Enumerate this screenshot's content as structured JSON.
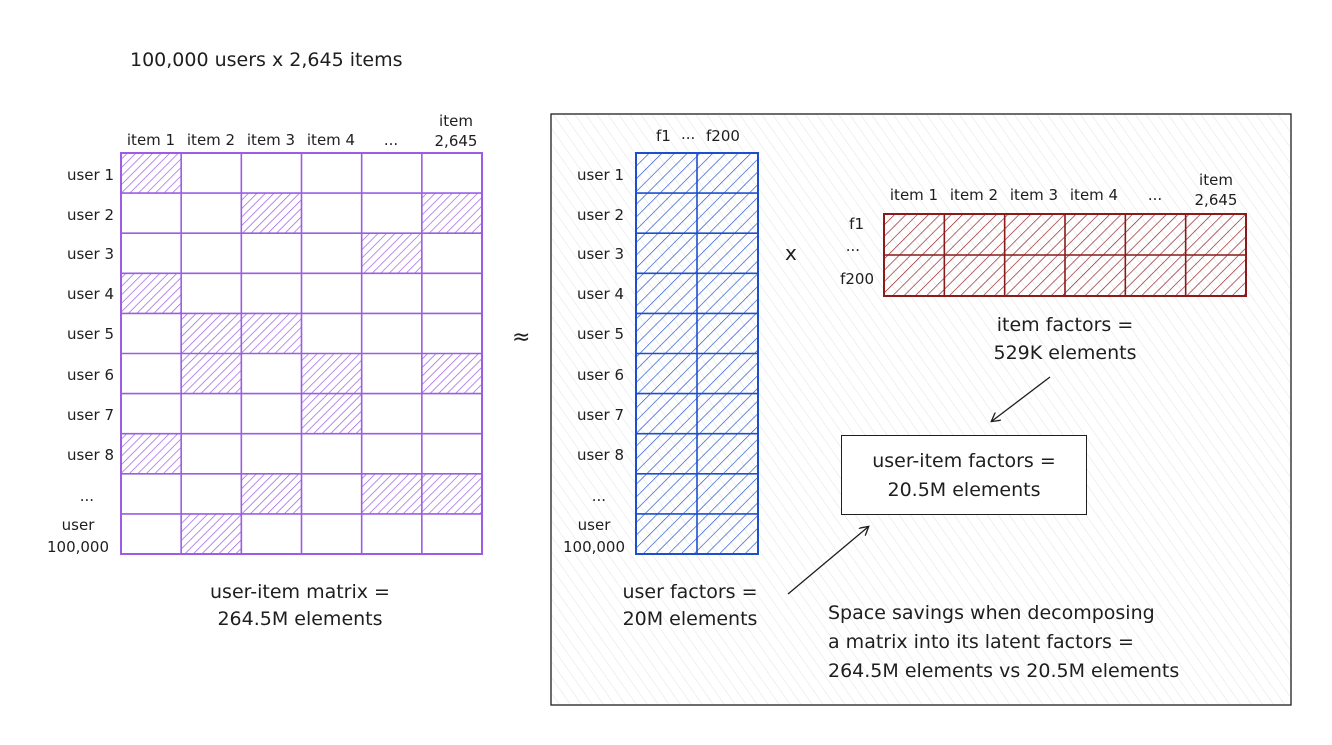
{
  "title": "100,000 users x 2,645 items",
  "approx_symbol": "≈",
  "times_symbol": "x",
  "user_item_matrix": {
    "column_labels": [
      "item 1",
      "item 2",
      "item 3",
      "item 4",
      "...",
      "item 2,645"
    ],
    "row_labels": [
      "user 1",
      "user 2",
      "user 3",
      "user 4",
      "user 5",
      "user 6",
      "user 7",
      "user 8",
      "...",
      "user 100,000"
    ],
    "filled_cells": [
      [
        0,
        0
      ],
      [
        1,
        2
      ],
      [
        1,
        5
      ],
      [
        2,
        4
      ],
      [
        3,
        0
      ],
      [
        4,
        1
      ],
      [
        4,
        2
      ],
      [
        5,
        1
      ],
      [
        5,
        3
      ],
      [
        5,
        5
      ],
      [
        6,
        3
      ],
      [
        7,
        0
      ],
      [
        8,
        2
      ],
      [
        8,
        4
      ],
      [
        8,
        5
      ],
      [
        9,
        1
      ]
    ],
    "caption": [
      "user-item matrix =",
      "264.5M elements"
    ],
    "color": "#9b5de5"
  },
  "user_factors": {
    "column_labels": [
      "f1",
      "...",
      "f200"
    ],
    "row_labels": [
      "user 1",
      "user 2",
      "user 3",
      "user 4",
      "user 5",
      "user 6",
      "user 7",
      "user 8",
      "...",
      "user 100,000"
    ],
    "caption": [
      "user factors =",
      "20M elements"
    ],
    "color": "#1c4fd0"
  },
  "item_factors": {
    "column_labels": [
      "item 1",
      "item 2",
      "item 3",
      "item 4",
      "...",
      "item 2,645"
    ],
    "row_labels": [
      "f1",
      "...",
      "f200"
    ],
    "caption": [
      "item factors =",
      "529K elements"
    ],
    "color": "#8b1a1a"
  },
  "result_box": [
    "user-item factors =",
    "20.5M elements"
  ],
  "savings_note": [
    "Space savings when decomposing",
    "a matrix into its latent factors =",
    "264.5M elements vs 20.5M elements"
  ]
}
